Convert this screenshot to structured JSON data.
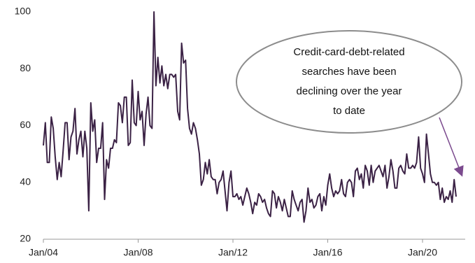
{
  "chart_data": {
    "type": "line",
    "x": [
      "2004-01",
      "2004-02",
      "2004-03",
      "2004-04",
      "2004-05",
      "2004-06",
      "2004-07",
      "2004-08",
      "2004-09",
      "2004-10",
      "2004-11",
      "2004-12",
      "2005-01",
      "2005-02",
      "2005-03",
      "2005-04",
      "2005-05",
      "2005-06",
      "2005-07",
      "2005-08",
      "2005-09",
      "2005-10",
      "2005-11",
      "2005-12",
      "2006-01",
      "2006-02",
      "2006-03",
      "2006-04",
      "2006-05",
      "2006-06",
      "2006-07",
      "2006-08",
      "2006-09",
      "2006-10",
      "2006-11",
      "2006-12",
      "2007-01",
      "2007-02",
      "2007-03",
      "2007-04",
      "2007-05",
      "2007-06",
      "2007-07",
      "2007-08",
      "2007-09",
      "2007-10",
      "2007-11",
      "2007-12",
      "2008-01",
      "2008-02",
      "2008-03",
      "2008-04",
      "2008-05",
      "2008-06",
      "2008-07",
      "2008-08",
      "2008-09",
      "2008-10",
      "2008-11",
      "2008-12",
      "2009-01",
      "2009-02",
      "2009-03",
      "2009-04",
      "2009-05",
      "2009-06",
      "2009-07",
      "2009-08",
      "2009-09",
      "2009-10",
      "2009-11",
      "2009-12",
      "2010-01",
      "2010-02",
      "2010-03",
      "2010-04",
      "2010-05",
      "2010-06",
      "2010-07",
      "2010-08",
      "2010-09",
      "2010-10",
      "2010-11",
      "2010-12",
      "2011-01",
      "2011-02",
      "2011-03",
      "2011-04",
      "2011-05",
      "2011-06",
      "2011-07",
      "2011-08",
      "2011-09",
      "2011-10",
      "2011-11",
      "2011-12",
      "2012-01",
      "2012-02",
      "2012-03",
      "2012-04",
      "2012-05",
      "2012-06",
      "2012-07",
      "2012-08",
      "2012-09",
      "2012-10",
      "2012-11",
      "2012-12",
      "2013-01",
      "2013-02",
      "2013-03",
      "2013-04",
      "2013-05",
      "2013-06",
      "2013-07",
      "2013-08",
      "2013-09",
      "2013-10",
      "2013-11",
      "2013-12",
      "2014-01",
      "2014-02",
      "2014-03",
      "2014-04",
      "2014-05",
      "2014-06",
      "2014-07",
      "2014-08",
      "2014-09",
      "2014-10",
      "2014-11",
      "2014-12",
      "2015-01",
      "2015-02",
      "2015-03",
      "2015-04",
      "2015-05",
      "2015-06",
      "2015-07",
      "2015-08",
      "2015-09",
      "2015-10",
      "2015-11",
      "2015-12",
      "2016-01",
      "2016-02",
      "2016-03",
      "2016-04",
      "2016-05",
      "2016-06",
      "2016-07",
      "2016-08",
      "2016-09",
      "2016-10",
      "2016-11",
      "2016-12",
      "2017-01",
      "2017-02",
      "2017-03",
      "2017-04",
      "2017-05",
      "2017-06",
      "2017-07",
      "2017-08",
      "2017-09",
      "2017-10",
      "2017-11",
      "2017-12",
      "2018-01",
      "2018-02",
      "2018-03",
      "2018-04",
      "2018-05",
      "2018-06",
      "2018-07",
      "2018-08",
      "2018-09",
      "2018-10",
      "2018-11",
      "2018-12",
      "2019-01",
      "2019-02",
      "2019-03",
      "2019-04",
      "2019-05",
      "2019-06",
      "2019-07",
      "2019-08",
      "2019-09",
      "2019-10",
      "2019-11",
      "2019-12",
      "2020-01",
      "2020-02",
      "2020-03",
      "2020-04",
      "2020-05",
      "2020-06",
      "2020-07",
      "2020-08",
      "2020-09",
      "2020-10",
      "2020-11",
      "2020-12",
      "2021-01",
      "2021-02",
      "2021-03",
      "2021-04",
      "2021-05",
      "2021-06"
    ],
    "series": [
      {
        "color": "#3b2245",
        "values": [
          53,
          61,
          47,
          47,
          63,
          59,
          49,
          41,
          47,
          42,
          51,
          61,
          61,
          48,
          56,
          58,
          66,
          50,
          55,
          58,
          49,
          58,
          52,
          30,
          68,
          58,
          62,
          47,
          52,
          52,
          61,
          34,
          48,
          45,
          52,
          52,
          55,
          54,
          68,
          67,
          61,
          70,
          70,
          53,
          54,
          76,
          61,
          60,
          72,
          62,
          65,
          53,
          64,
          70,
          60,
          59,
          100,
          74,
          84,
          75,
          81,
          74,
          78,
          73,
          78,
          78,
          77,
          78,
          65,
          62,
          89,
          82,
          83,
          66,
          59,
          57,
          61,
          59,
          55,
          50,
          39,
          41,
          47,
          43,
          48,
          42,
          41,
          41,
          36,
          40,
          41,
          44,
          37,
          30,
          40,
          44,
          35,
          35,
          36,
          34,
          35,
          32,
          35,
          38,
          36,
          33,
          29,
          33,
          32,
          36,
          35,
          33,
          34,
          31,
          29,
          28,
          37,
          36,
          31,
          35,
          33,
          30,
          34,
          31,
          28,
          28,
          37,
          34,
          32,
          30,
          33,
          34,
          26,
          30,
          38,
          33,
          34,
          31,
          32,
          35,
          36,
          30,
          35,
          32,
          39,
          43,
          38,
          35,
          37,
          36,
          37,
          41,
          36,
          35,
          40,
          41,
          40,
          35,
          44,
          45,
          41,
          43,
          38,
          46,
          44,
          39,
          46,
          40,
          44,
          45,
          46,
          44,
          42,
          46,
          38,
          42,
          48,
          44,
          38,
          38,
          45,
          46,
          44,
          43,
          50,
          45,
          45,
          46,
          45,
          47,
          56,
          45,
          43,
          40,
          57,
          50,
          43,
          40,
          40,
          39,
          40,
          34,
          38,
          33,
          35,
          34,
          37,
          33,
          41,
          35
        ]
      }
    ],
    "ylim": [
      20,
      100
    ],
    "yticks": [
      20,
      40,
      60,
      80,
      100
    ],
    "xticks": [
      {
        "value": "2004-01",
        "label": "Jan/04"
      },
      {
        "value": "2008-01",
        "label": "Jan/08"
      },
      {
        "value": "2012-01",
        "label": "Jan/12"
      },
      {
        "value": "2016-01",
        "label": "Jan/16"
      },
      {
        "value": "2020-01",
        "label": "Jan/20"
      }
    ],
    "grid": false,
    "annotation": [
      "Credit-card-debt-related",
      "searches have been",
      "declining over the year",
      "to date"
    ],
    "annotation_color": "#7b4a8e"
  }
}
